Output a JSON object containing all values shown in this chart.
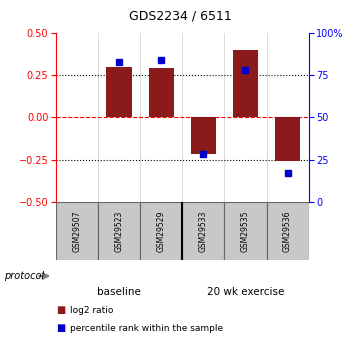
{
  "title": "GDS2234 / 6511",
  "samples": [
    "GSM29507",
    "GSM29523",
    "GSM29529",
    "GSM29533",
    "GSM29535",
    "GSM29536"
  ],
  "log2_ratio": [
    0.0,
    0.3,
    0.29,
    -0.22,
    0.4,
    -0.26
  ],
  "percentile_rank": [
    null,
    83,
    84,
    28,
    78,
    17
  ],
  "left_ylim": [
    -0.5,
    0.5
  ],
  "right_ylim": [
    0,
    100
  ],
  "left_yticks": [
    -0.5,
    -0.25,
    0,
    0.25,
    0.5
  ],
  "right_yticks": [
    0,
    25,
    50,
    75,
    100
  ],
  "right_yticklabels": [
    "0",
    "25",
    "50",
    "75",
    "100%"
  ],
  "bar_color": "#8B1A1A",
  "point_color": "#0000CD",
  "bar_width": 0.6,
  "background_color": "#ffffff",
  "dashed_zero_color": "#FF0000",
  "protocol_label": "protocol",
  "legend_red_label": "log2 ratio",
  "legend_blue_label": "percentile rank within the sample",
  "baseline_color": "#90EE90",
  "exercise_color": "#66CC66",
  "label_box_color": "#C8C8C8"
}
